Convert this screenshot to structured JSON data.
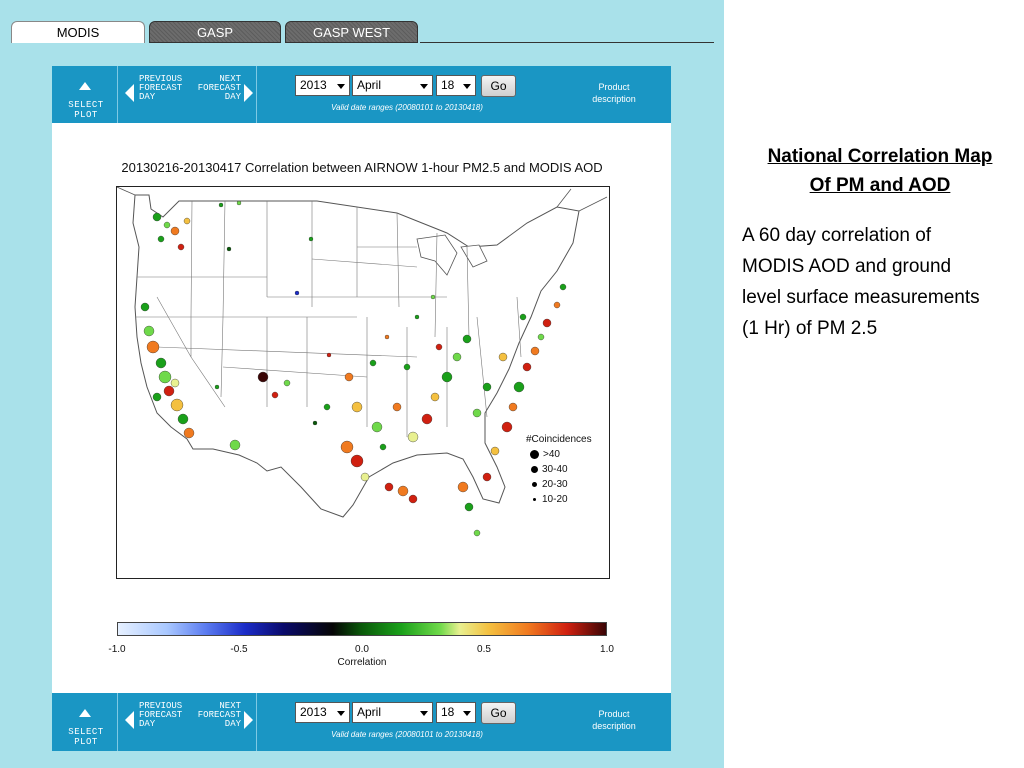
{
  "tabs": [
    {
      "label": "MODIS",
      "active": true
    },
    {
      "label": "GASP",
      "active": false
    },
    {
      "label": "GASP WEST",
      "active": false
    }
  ],
  "nav": {
    "select_plot": "SELECT PLOT",
    "previous": "PREVIOUS\nFORECAST\nDAY",
    "next": "NEXT\nFORECAST\nDAY",
    "year": "2013",
    "month": "April",
    "day": "18",
    "go": "Go",
    "valid_range": "Valid date ranges (20080101 to 20130418)",
    "product_description": "Product\ndescription"
  },
  "plot": {
    "title": "20130216-20130417 Correlation between AIRNOW 1-hour PM2.5 and MODIS AOD",
    "legend_title": "#Coincidences",
    "legend_items": [
      ">40",
      "30-40",
      "20-30",
      "10-20"
    ],
    "colorbar_ticks": [
      "-1.0",
      "-0.5",
      "0.0",
      "0.5",
      "1.0"
    ],
    "colorbar_label": "Correlation"
  },
  "colors": {
    "panel_bg": "#a9e1ea",
    "nav_bar": "#1a96c4",
    "high_correlation": "#d02010",
    "mid_correlation": "#f4c040",
    "low_correlation": "#1aa01a"
  },
  "side": {
    "title": "National Correlation Map\nOf PM and AOD",
    "body": "A 60 day correlation of\nMODIS AOD and ground\nlevel surface measurements\n(1 Hr) of PM 2.5"
  }
}
